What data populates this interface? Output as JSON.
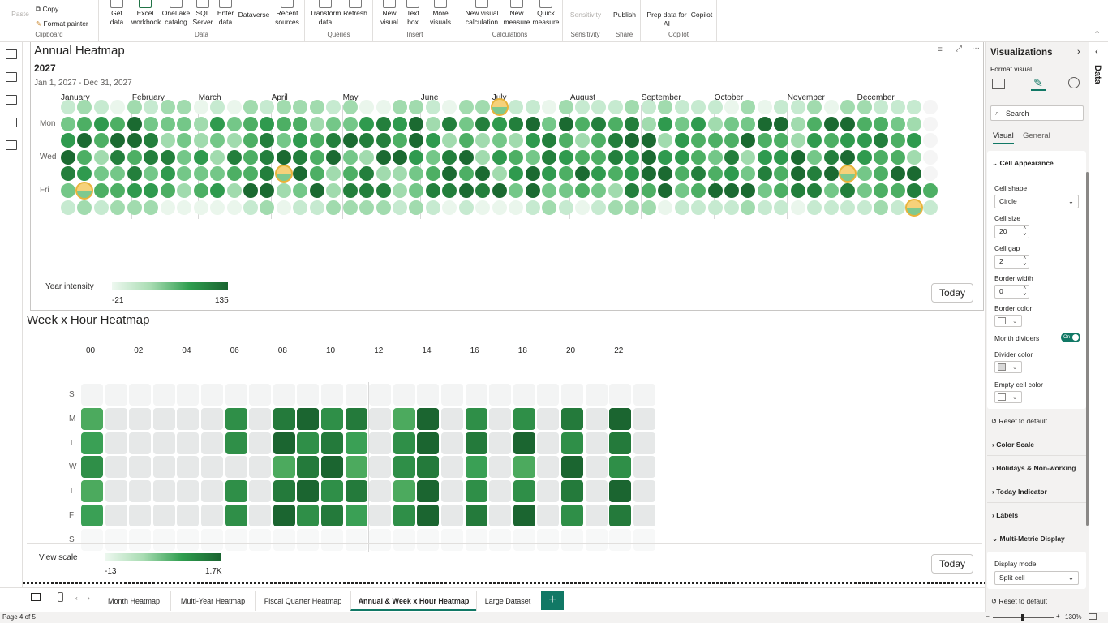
{
  "ribbon": {
    "clipboard": {
      "paste": "Paste",
      "copy": "Copy",
      "format_painter": "Format painter",
      "label": "Clipboard"
    },
    "data": {
      "get_data": "Get data",
      "excel": "Excel workbook",
      "onelake": "OneLake catalog",
      "sql": "SQL Server",
      "enter": "Enter data",
      "dataverse": "Dataverse",
      "recent": "Recent sources",
      "label": "Data"
    },
    "queries": {
      "transform": "Transform data",
      "refresh": "Refresh",
      "label": "Queries"
    },
    "insert": {
      "new_visual": "New visual",
      "text_box": "Text box",
      "more_visuals": "More visuals",
      "label": "Insert"
    },
    "calculations": {
      "new_visual_calc": "New visual calculation",
      "new_measure": "New measure",
      "quick_measure": "Quick measure",
      "label": "Calculations"
    },
    "sensitivity": {
      "btn": "Sensitivity",
      "label": "Sensitivity"
    },
    "share": {
      "publish": "Publish",
      "label": "Share"
    },
    "copilot": {
      "prep": "Prep data for AI",
      "copilot": "Copilot",
      "label": "Copilot"
    }
  },
  "annual": {
    "title": "Annual Heatmap",
    "year": "2027",
    "range": "Jan 1, 2027 - Dec 31, 2027",
    "months": [
      "January",
      "February",
      "March",
      "April",
      "May",
      "June",
      "July",
      "August",
      "September",
      "October",
      "November",
      "December"
    ],
    "day_labels": [
      "Mon",
      "Wed",
      "Fri"
    ],
    "legend_label": "Year intensity",
    "legend_min": "-21",
    "legend_max": "135",
    "today": "Today"
  },
  "weekhour": {
    "title": "Week x Hour Heatmap",
    "hours": [
      "00",
      "02",
      "04",
      "06",
      "08",
      "10",
      "12",
      "14",
      "16",
      "18",
      "20",
      "22"
    ],
    "days": [
      "S",
      "M",
      "T",
      "W",
      "T",
      "F",
      "S"
    ],
    "legend_label": "View scale",
    "legend_min": "-13",
    "legend_max": "1.7K",
    "today": "Today"
  },
  "tabs": [
    "Month Heatmap",
    "Multi-Year Heatmap",
    "Fiscal Quarter Heatmap",
    "Annual & Week x Hour Heatmap",
    "Large Dataset"
  ],
  "add_tab": "+",
  "status": {
    "page": "Page 4 of 5",
    "zoom": "130%"
  },
  "viz_pane": {
    "title": "Visualizations",
    "subtitle": "Format visual",
    "search_placeholder": "Search",
    "tab_visual": "Visual",
    "tab_general": "General",
    "more": "···",
    "cell_appearance": "Cell Appearance",
    "cell_shape_label": "Cell shape",
    "cell_shape_value": "Circle",
    "cell_size_label": "Cell size",
    "cell_size_value": "20",
    "cell_gap_label": "Cell gap",
    "cell_gap_value": "2",
    "border_width_label": "Border width",
    "border_width_value": "0",
    "border_color_label": "Border color",
    "month_dividers_label": "Month dividers",
    "toggle": "On",
    "divider_color_label": "Divider color",
    "empty_cell_color_label": "Empty cell color",
    "reset": "Reset to default",
    "color_scale": "Color Scale",
    "holidays": "Holidays & Non-working",
    "today_indicator": "Today Indicator",
    "labels": "Labels",
    "multi_metric": "Multi-Metric Display",
    "display_mode_label": "Display mode",
    "display_mode_value": "Split cell",
    "reset2": "Reset to default"
  },
  "data_pane": {
    "title": "Data"
  },
  "colors": {
    "accent": "#117865",
    "green_dark": "#1f6b35",
    "green_mid": "#2f9e4f",
    "green_light": "#a8dcb2",
    "empty": "#f3f4f4",
    "today": "#f0c34a"
  }
}
